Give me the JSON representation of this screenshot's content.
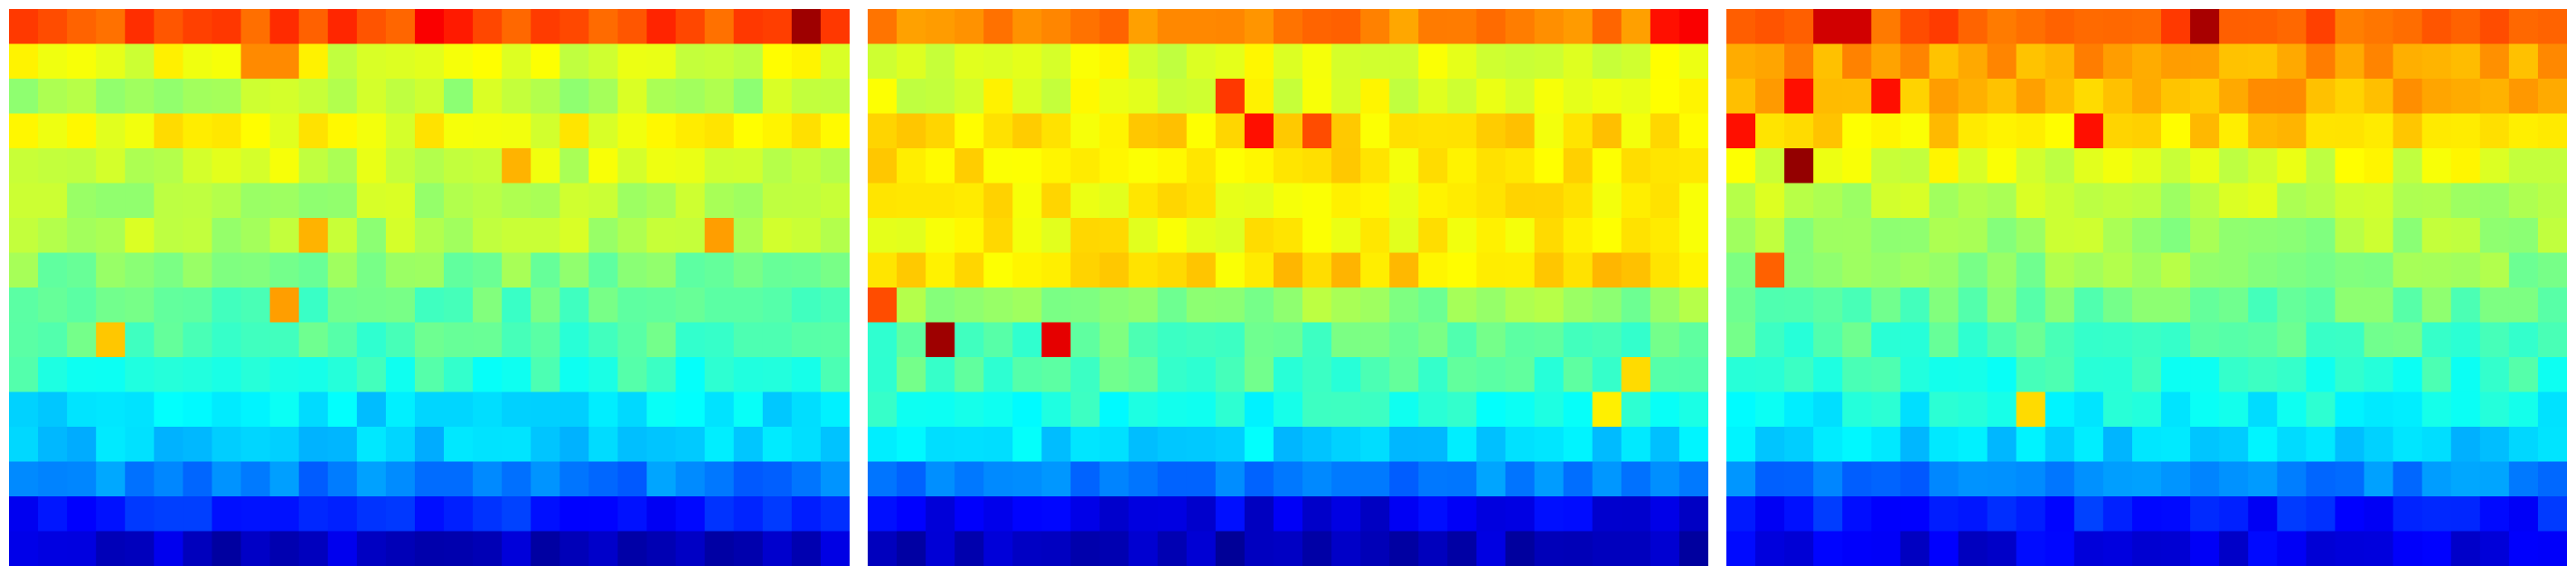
{
  "chart_data": [
    {
      "type": "heatmap",
      "colormap": "jet",
      "rows": 16,
      "cols": 29,
      "row_profile": [
        0.8,
        0.6,
        0.55,
        0.62,
        0.58,
        0.55,
        0.55,
        0.5,
        0.47,
        0.45,
        0.42,
        0.35,
        0.32,
        0.25,
        0.15,
        0.07
      ],
      "hotspots": [
        {
          "row": 0,
          "col": 14,
          "value": 0.88
        },
        {
          "row": 0,
          "col": 15,
          "value": 0.85
        },
        {
          "row": 0,
          "col": 27,
          "value": 0.97
        },
        {
          "row": 0,
          "col": 28,
          "value": 0.82
        },
        {
          "row": 1,
          "col": 8,
          "value": 0.74
        },
        {
          "row": 1,
          "col": 9,
          "value": 0.74
        },
        {
          "row": 4,
          "col": 17,
          "value": 0.7
        },
        {
          "row": 6,
          "col": 10,
          "value": 0.7
        },
        {
          "row": 6,
          "col": 24,
          "value": 0.72
        },
        {
          "row": 8,
          "col": 9,
          "value": 0.72
        },
        {
          "row": 9,
          "col": 3,
          "value": 0.68
        }
      ]
    },
    {
      "type": "heatmap",
      "colormap": "jet",
      "rows": 16,
      "cols": 29,
      "row_profile": [
        0.75,
        0.6,
        0.6,
        0.65,
        0.65,
        0.63,
        0.63,
        0.66,
        0.52,
        0.46,
        0.45,
        0.4,
        0.34,
        0.25,
        0.1,
        0.06
      ],
      "hotspots": [
        {
          "row": 0,
          "col": 28,
          "value": 0.88
        },
        {
          "row": 0,
          "col": 27,
          "value": 0.86
        },
        {
          "row": 2,
          "col": 12,
          "value": 0.82
        },
        {
          "row": 3,
          "col": 13,
          "value": 0.86
        },
        {
          "row": 3,
          "col": 15,
          "value": 0.8
        },
        {
          "row": 8,
          "col": 0,
          "value": 0.8
        },
        {
          "row": 9,
          "col": 2,
          "value": 0.97
        },
        {
          "row": 9,
          "col": 6,
          "value": 0.9
        },
        {
          "row": 10,
          "col": 26,
          "value": 0.66
        },
        {
          "row": 11,
          "col": 25,
          "value": 0.64
        }
      ]
    },
    {
      "type": "heatmap",
      "colormap": "jet",
      "rows": 16,
      "cols": 29,
      "row_profile": [
        0.78,
        0.72,
        0.7,
        0.66,
        0.6,
        0.56,
        0.54,
        0.52,
        0.48,
        0.45,
        0.42,
        0.38,
        0.33,
        0.25,
        0.15,
        0.1
      ],
      "hotspots": [
        {
          "row": 0,
          "col": 3,
          "value": 0.92
        },
        {
          "row": 0,
          "col": 4,
          "value": 0.92
        },
        {
          "row": 0,
          "col": 16,
          "value": 0.96
        },
        {
          "row": 2,
          "col": 2,
          "value": 0.86
        },
        {
          "row": 2,
          "col": 5,
          "value": 0.86
        },
        {
          "row": 3,
          "col": 0,
          "value": 0.86
        },
        {
          "row": 3,
          "col": 12,
          "value": 0.86
        },
        {
          "row": 4,
          "col": 2,
          "value": 0.98
        },
        {
          "row": 7,
          "col": 1,
          "value": 0.78
        },
        {
          "row": 11,
          "col": 10,
          "value": 0.66
        }
      ]
    }
  ]
}
